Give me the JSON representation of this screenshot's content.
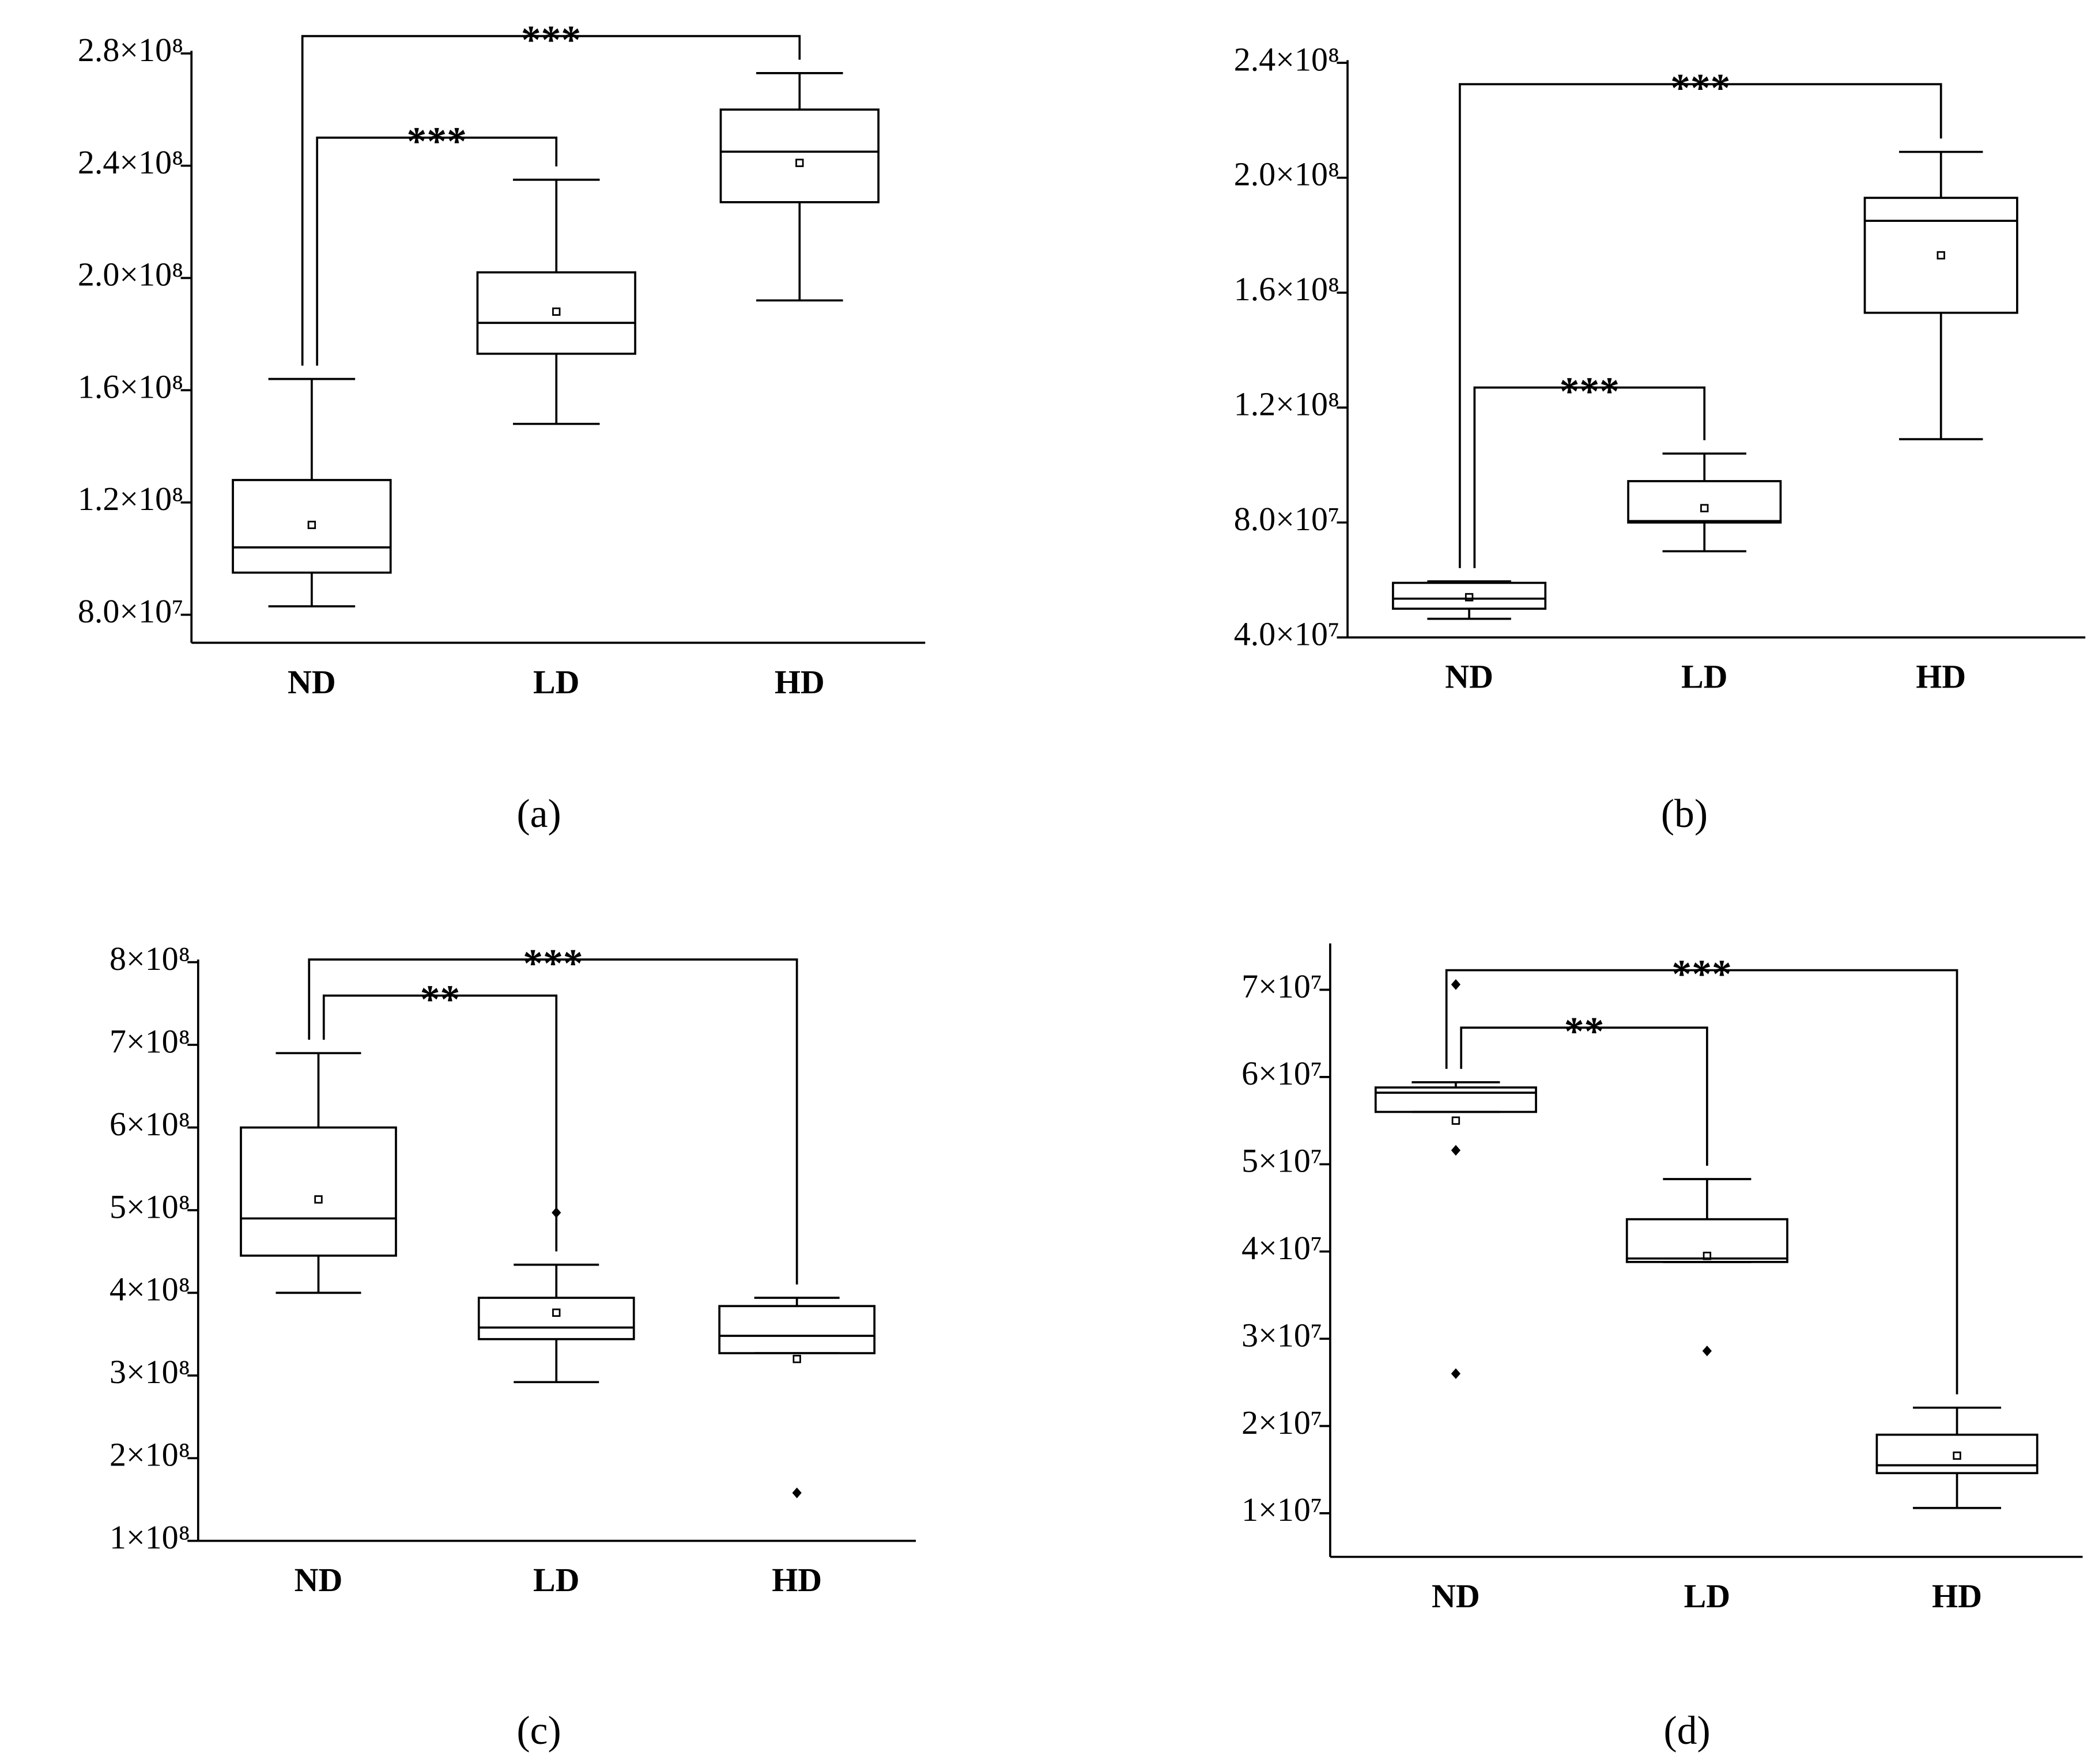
{
  "chart_data": [
    {
      "type": "box",
      "caption": "(a)",
      "categories": [
        "ND",
        "LD",
        "HD"
      ],
      "boxes": [
        {
          "low": 83000000,
          "q1": 95000000,
          "median": 104000000,
          "q3": 128000000,
          "high": 164000000,
          "mean": 112000000,
          "outliers": []
        },
        {
          "low": 148000000,
          "q1": 173000000,
          "median": 184000000,
          "q3": 202000000,
          "high": 235000000,
          "mean": 188000000,
          "outliers": []
        },
        {
          "low": 192000000,
          "q1": 227000000,
          "median": 245000000,
          "q3": 260000000,
          "high": 273000000,
          "mean": 241000000,
          "outliers": []
        }
      ],
      "ylim": [
        70000000,
        280000000
      ],
      "yticks": [
        {
          "value": 80000000,
          "label": "8.0×10⁷"
        },
        {
          "value": 120000000,
          "label": "1.2×10⁸"
        },
        {
          "value": 160000000,
          "label": "1.6×10⁸"
        },
        {
          "value": 200000000,
          "label": "2.0×10⁸"
        },
        {
          "value": 240000000,
          "label": "2.4×10⁸"
        },
        {
          "value": 280000000,
          "label": "2.8×10⁸"
        }
      ],
      "annotations": [
        {
          "text": "***",
          "from": "ND",
          "to": "LD"
        },
        {
          "text": "***",
          "from": "ND",
          "to": "HD"
        }
      ]
    },
    {
      "type": "box",
      "caption": "(b)",
      "categories": [
        "ND",
        "LD",
        "HD"
      ],
      "boxes": [
        {
          "low": 46500000,
          "q1": 50000000,
          "median": 53500000,
          "q3": 59000000,
          "high": 59500000,
          "mean": 54000000,
          "outliers": []
        },
        {
          "low": 70000000,
          "q1": 80000000,
          "median": 80500000,
          "q3": 94400000,
          "high": 104000000,
          "mean": 85000000,
          "outliers": []
        },
        {
          "low": 109000000,
          "q1": 153000000,
          "median": 185000000,
          "q3": 193000000,
          "high": 209000000,
          "mean": 173000000,
          "outliers": []
        }
      ],
      "ylim": [
        40000000,
        240000000
      ],
      "yticks": [
        {
          "value": 40000000,
          "label": "4.0×10⁷"
        },
        {
          "value": 80000000,
          "label": "8.0×10⁷"
        },
        {
          "value": 120000000,
          "label": "1.2×10⁸"
        },
        {
          "value": 160000000,
          "label": "1.6×10⁸"
        },
        {
          "value": 200000000,
          "label": "2.0×10⁸"
        },
        {
          "value": 240000000,
          "label": "2.4×10⁸"
        }
      ],
      "annotations": [
        {
          "text": "***",
          "from": "ND",
          "to": "LD"
        },
        {
          "text": "***",
          "from": "ND",
          "to": "HD"
        }
      ]
    },
    {
      "type": "box",
      "caption": "(c)",
      "categories": [
        "ND",
        "LD",
        "HD"
      ],
      "boxes": [
        {
          "low": 400000000,
          "q1": 445000000,
          "median": 490000000,
          "q3": 600000000,
          "high": 690000000,
          "mean": 513000000,
          "outliers": []
        },
        {
          "low": 292000000,
          "q1": 344000000,
          "median": 358000000,
          "q3": 394000000,
          "high": 434000000,
          "mean": 376000000,
          "outliers": [
            497000000
          ]
        },
        {
          "low": 327000000,
          "q1": 327000000,
          "median": 348000000,
          "q3": 384000000,
          "high": 394000000,
          "mean": 320000000,
          "outliers": [
            158000000
          ]
        }
      ],
      "ylim": [
        100000000,
        800000000
      ],
      "yticks": [
        {
          "value": 100000000,
          "label": "1×10⁸"
        },
        {
          "value": 200000000,
          "label": "2×10⁸"
        },
        {
          "value": 300000000,
          "label": "3×10⁸"
        },
        {
          "value": 400000000,
          "label": "4×10⁸"
        },
        {
          "value": 500000000,
          "label": "5×10⁸"
        },
        {
          "value": 600000000,
          "label": "6×10⁸"
        },
        {
          "value": 700000000,
          "label": "7×10⁸"
        },
        {
          "value": 800000000,
          "label": "8×10⁸"
        }
      ],
      "annotations": [
        {
          "text": "**",
          "from": "ND",
          "to": "LD"
        },
        {
          "text": "***",
          "from": "ND",
          "to": "HD"
        }
      ]
    },
    {
      "type": "box",
      "caption": "(d)",
      "categories": [
        "ND",
        "LD",
        "HD"
      ],
      "boxes": [
        {
          "low": 56000000,
          "q1": 56000000,
          "median": 58200000,
          "q3": 58800000,
          "high": 59400000,
          "mean": 55000000,
          "outliers": [
            70600000,
            51600000,
            26000000
          ]
        },
        {
          "low": 38800000,
          "q1": 38800000,
          "median": 39200000,
          "q3": 43700000,
          "high": 48300000,
          "mean": 39500000,
          "outliers": [
            28600000
          ]
        },
        {
          "low": 10600000,
          "q1": 14600000,
          "median": 15500000,
          "q3": 19000000,
          "high": 22100000,
          "mean": 16600000,
          "outliers": []
        }
      ],
      "ylim": [
        5000000,
        75000000
      ],
      "yticks": [
        {
          "value": 10000000,
          "label": "1×10⁷"
        },
        {
          "value": 20000000,
          "label": "2×10⁷"
        },
        {
          "value": 30000000,
          "label": "3×10⁷"
        },
        {
          "value": 40000000,
          "label": "4×10⁷"
        },
        {
          "value": 50000000,
          "label": "5×10⁷"
        },
        {
          "value": 60000000,
          "label": "6×10⁷"
        },
        {
          "value": 70000000,
          "label": "7×10⁷"
        }
      ],
      "annotations": [
        {
          "text": "**",
          "from": "ND",
          "to": "LD"
        },
        {
          "text": "***",
          "from": "ND",
          "to": "HD"
        }
      ]
    }
  ]
}
